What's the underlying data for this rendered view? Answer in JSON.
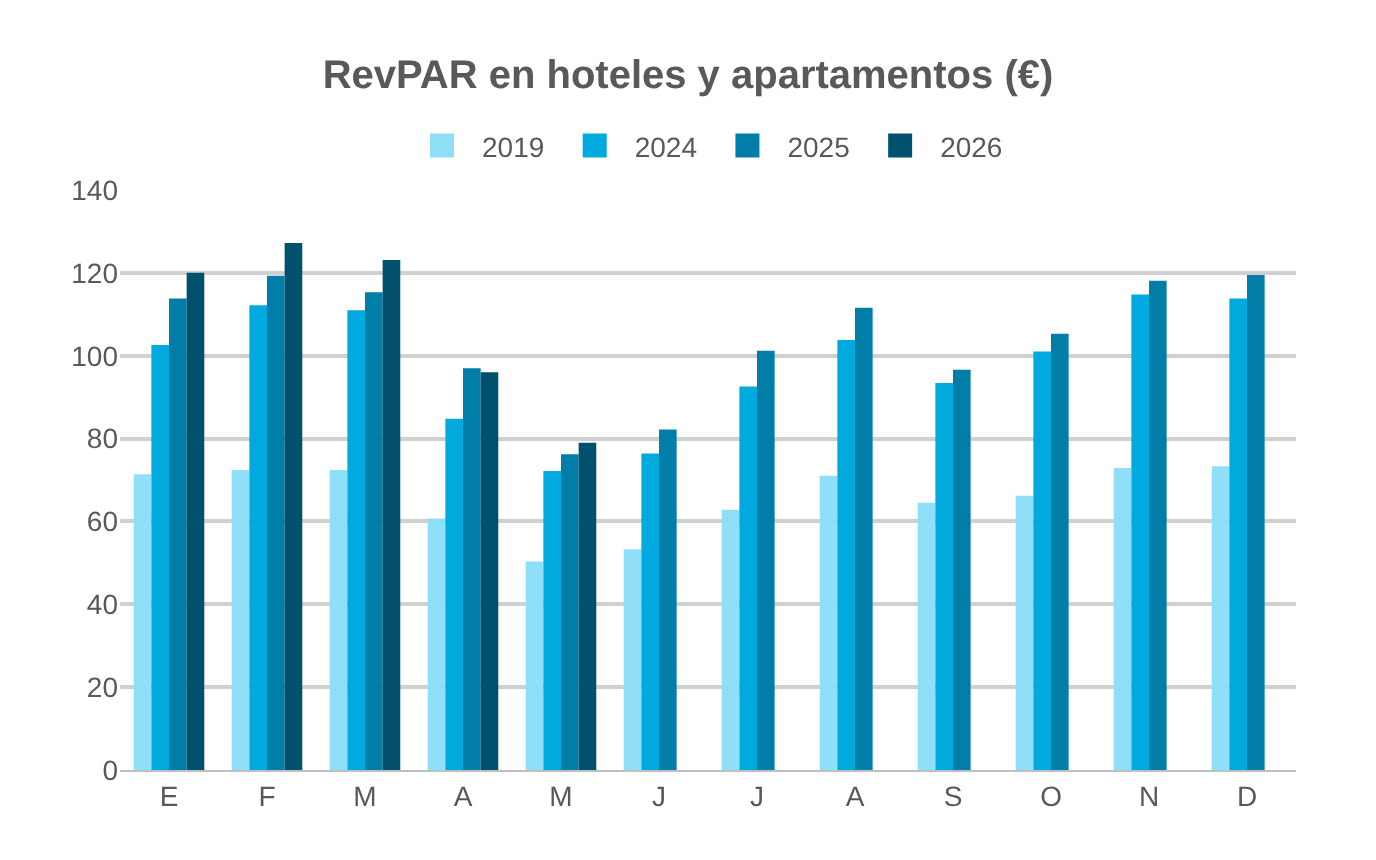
{
  "chart_data": {
    "type": "bar",
    "title": "RevPAR en hoteles y apartamentos (€)",
    "categories": [
      "E",
      "F",
      "M",
      "A",
      "M",
      "J",
      "J",
      "A",
      "S",
      "O",
      "N",
      "D"
    ],
    "series": [
      {
        "name": "2019",
        "color": "#8fdff9",
        "values": [
          71.4,
          72.4,
          72.4,
          60.7,
          50.3,
          53.3,
          62.8,
          71,
          64.5,
          66.2,
          72.9,
          73.3
        ]
      },
      {
        "name": "2024",
        "color": "#00aadf",
        "values": [
          102.6,
          112.2,
          111,
          84.8,
          72.2,
          76.4,
          92.6,
          103.8,
          93.4,
          101,
          114.8,
          113.8
        ]
      },
      {
        "name": "2025",
        "color": "#007ea7",
        "values": [
          113.8,
          119.3,
          115.3,
          97,
          76.2,
          82.2,
          101.2,
          111.6,
          96.6,
          105.3,
          118.1,
          119.5
        ]
      },
      {
        "name": "2026",
        "color": "#00506e",
        "values": [
          120,
          127.2,
          123.1,
          96,
          79,
          null,
          null,
          null,
          null,
          null,
          null,
          null
        ]
      }
    ],
    "ylim": [
      0,
      140
    ],
    "yticks": [
      0,
      20,
      40,
      60,
      80,
      100,
      120,
      140
    ],
    "grid": "y",
    "legend": "top"
  }
}
